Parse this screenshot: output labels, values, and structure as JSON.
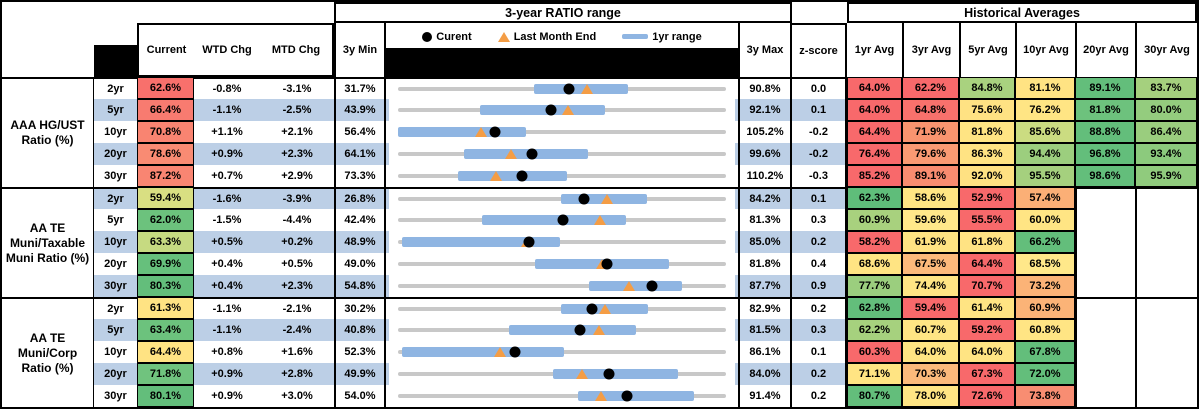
{
  "titles": {
    "range_section": "3-year RATIO range",
    "historical_section": "Historical Averages"
  },
  "legend": {
    "current_label": "Curent",
    "last_month_label": "Last Month End",
    "range_label": "1yr range"
  },
  "headers": {
    "current": "Current",
    "wtd": "WTD Chg",
    "mtd": "MTD Chg",
    "min": "3y Min",
    "max": "3y Max",
    "zscore": "z-score",
    "avgs": [
      "1yr Avg",
      "3yr Avg",
      "5yr Avg",
      "10yr Avg",
      "20yr Avg",
      "30yr Avg"
    ]
  },
  "colors": {
    "stripe_blue": "#BCCFE6",
    "bar_blue": "#8FB5E2",
    "track_grey": "#C8C8C8",
    "marker_orange": "#F49D45",
    "scale_red": "#F8696B",
    "scale_yellow": "#FFE383",
    "scale_green": "#63BE7B"
  },
  "chart_data": {
    "type": "table",
    "note_markers": {
      "dot": "Current",
      "triangle": "Last Month End",
      "bar": "1yr range"
    },
    "groups": [
      {
        "label": "AAA HG/UST Ratio (%)",
        "rows": [
          {
            "tenor": "2yr",
            "current": "62.6%",
            "cur_bg": "#F8706C",
            "wtd": "-0.8%",
            "mtd": "-3.1%",
            "min": "31.7%",
            "max": "90.8%",
            "z": "0.0",
            "bar": [
              56.2,
              73.2
            ],
            "lme": 65.7,
            "avgs": [
              [
                "64.0%",
                "#F8696B"
              ],
              [
                "62.2%",
                "#F8696B"
              ],
              [
                "84.8%",
                "#A9D27F"
              ],
              [
                "81.1%",
                "#FFE383"
              ],
              [
                "89.1%",
                "#63BE7B"
              ],
              [
                "83.7%",
                "#A5D07E"
              ]
            ]
          },
          {
            "tenor": "5yr",
            "current": "66.4%",
            "cur_bg": "#F87B70",
            "wtd": "-1.1%",
            "mtd": "-2.5%",
            "min": "43.9%",
            "max": "92.1%",
            "z": "0.1",
            "bar": [
              56.0,
              74.3
            ],
            "lme": 68.9,
            "avgs": [
              [
                "64.0%",
                "#F8696B"
              ],
              [
                "64.8%",
                "#F8716C"
              ],
              [
                "75.6%",
                "#FFE283"
              ],
              [
                "76.2%",
                "#FFE584"
              ],
              [
                "81.8%",
                "#6DC27D"
              ],
              [
                "80.0%",
                "#94CC7E"
              ]
            ]
          },
          {
            "tenor": "10yr",
            "current": "70.8%",
            "cur_bg": "#F98471",
            "wtd": "+1.1%",
            "mtd": "+2.1%",
            "min": "56.4%",
            "max": "105.2%",
            "z": "-0.2",
            "bar": [
              56.4,
              75.4
            ],
            "lme": 68.7,
            "avgs": [
              [
                "64.4%",
                "#F8696B"
              ],
              [
                "71.9%",
                "#F9946F"
              ],
              [
                "81.8%",
                "#FFE483"
              ],
              [
                "85.6%",
                "#CBDC81"
              ],
              [
                "88.8%",
                "#63BE7B"
              ],
              [
                "86.4%",
                "#9ACD7E"
              ]
            ]
          },
          {
            "tenor": "20yr",
            "current": "78.6%",
            "cur_bg": "#F98B73",
            "wtd": "+0.9%",
            "mtd": "+2.3%",
            "min": "64.1%",
            "max": "99.6%",
            "z": "-0.2",
            "bar": [
              71.2,
              84.7
            ],
            "lme": 76.3,
            "avgs": [
              [
                "76.4%",
                "#F8696B"
              ],
              [
                "79.6%",
                "#FA9A73"
              ],
              [
                "86.3%",
                "#FFE383"
              ],
              [
                "94.4%",
                "#9CCE7E"
              ],
              [
                "96.8%",
                "#63BE7B"
              ],
              [
                "93.4%",
                "#8CCA7D"
              ]
            ]
          },
          {
            "tenor": "30yr",
            "current": "87.2%",
            "cur_bg": "#F98572",
            "wtd": "+0.7%",
            "mtd": "+2.9%",
            "min": "73.3%",
            "max": "110.2%",
            "z": "-0.3",
            "bar": [
              80.0,
              92.3
            ],
            "lme": 84.3,
            "avgs": [
              [
                "85.2%",
                "#F8696B"
              ],
              [
                "89.1%",
                "#F98C70"
              ],
              [
                "92.0%",
                "#FFE182"
              ],
              [
                "95.5%",
                "#A5D07E"
              ],
              [
                "98.6%",
                "#63BE7B"
              ],
              [
                "95.9%",
                "#90CB7D"
              ]
            ]
          }
        ]
      },
      {
        "label": "AA TE Muni/Taxable Muni Ratio (%)",
        "rows": [
          {
            "tenor": "2yr",
            "current": "59.4%",
            "cur_bg": "#D9DF82",
            "wtd": "-1.6%",
            "mtd": "-3.9%",
            "min": "26.8%",
            "max": "84.2%",
            "z": "0.1",
            "bar": [
              55.3,
              70.3
            ],
            "lme": 63.3,
            "avgs": [
              [
                "62.3%",
                "#5FBD7A"
              ],
              [
                "58.6%",
                "#FFE583"
              ],
              [
                "52.9%",
                "#F8696B"
              ],
              [
                "57.4%",
                "#FBAF76"
              ],
              null,
              null
            ]
          },
          {
            "tenor": "5yr",
            "current": "62.0%",
            "cur_bg": "#6CC27D",
            "wtd": "-1.5%",
            "mtd": "-4.4%",
            "min": "42.4%",
            "max": "81.3%",
            "z": "0.3",
            "bar": [
              52.4,
              69.4
            ],
            "lme": 66.4,
            "avgs": [
              [
                "60.9%",
                "#A8D17E"
              ],
              [
                "59.6%",
                "#FFE88A"
              ],
              [
                "55.5%",
                "#F8696B"
              ],
              [
                "60.0%",
                "#FFE584"
              ],
              null,
              null
            ]
          },
          {
            "tenor": "10yr",
            "current": "63.3%",
            "cur_bg": "#C6DA81",
            "wtd": "+0.5%",
            "mtd": "+0.2%",
            "min": "48.9%",
            "max": "85.0%",
            "z": "0.2",
            "bar": [
              49.3,
              66.7
            ],
            "lme": 63.1,
            "avgs": [
              [
                "58.2%",
                "#F8696B"
              ],
              [
                "61.9%",
                "#FFE383"
              ],
              [
                "61.8%",
                "#FFE383"
              ],
              [
                "66.2%",
                "#63BE7B"
              ],
              null,
              null
            ]
          },
          {
            "tenor": "20yr",
            "current": "69.9%",
            "cur_bg": "#66C07C",
            "wtd": "+0.4%",
            "mtd": "+0.5%",
            "min": "49.0%",
            "max": "81.8%",
            "z": "0.4",
            "bar": [
              62.7,
              76.1
            ],
            "lme": 69.4,
            "avgs": [
              [
                "68.6%",
                "#FFE483"
              ],
              [
                "67.5%",
                "#FCBA7B"
              ],
              [
                "64.4%",
                "#F8696B"
              ],
              [
                "68.5%",
                "#FFE88A"
              ],
              null,
              null
            ]
          },
          {
            "tenor": "30yr",
            "current": "80.3%",
            "cur_bg": "#63BE7B",
            "wtd": "+0.4%",
            "mtd": "+2.3%",
            "min": "54.8%",
            "max": "87.7%",
            "z": "0.9",
            "bar": [
              74.0,
              83.3
            ],
            "lme": 78.0,
            "avgs": [
              [
                "77.7%",
                "#9BCE7E"
              ],
              [
                "74.4%",
                "#FFE584"
              ],
              [
                "70.7%",
                "#F8696B"
              ],
              [
                "73.2%",
                "#FBB377"
              ],
              null,
              null
            ]
          }
        ]
      },
      {
        "label": "AA TE Muni/Corp Ratio (%)",
        "rows": [
          {
            "tenor": "2yr",
            "current": "61.3%",
            "cur_bg": "#FFE383",
            "wtd": "-1.1%",
            "mtd": "-2.1%",
            "min": "30.2%",
            "max": "82.9%",
            "z": "0.2",
            "bar": [
              56.4,
              70.4
            ],
            "lme": 63.4,
            "avgs": [
              [
                "62.8%",
                "#63BE7B"
              ],
              [
                "59.4%",
                "#F8696B"
              ],
              [
                "61.4%",
                "#FFE483"
              ],
              [
                "60.9%",
                "#FBB377"
              ],
              null,
              null
            ]
          },
          {
            "tenor": "5yr",
            "current": "63.4%",
            "cur_bg": "#6CC27D",
            "wtd": "-1.1%",
            "mtd": "-2.4%",
            "min": "40.8%",
            "max": "81.5%",
            "z": "0.3",
            "bar": [
              54.6,
              70.3
            ],
            "lme": 65.8,
            "avgs": [
              [
                "62.2%",
                "#A6D17E"
              ],
              [
                "60.7%",
                "#FFE584"
              ],
              [
                "59.2%",
                "#F8696B"
              ],
              [
                "60.8%",
                "#FFE584"
              ],
              null,
              null
            ]
          },
          {
            "tenor": "10yr",
            "current": "64.4%",
            "cur_bg": "#FFE383",
            "wtd": "+0.8%",
            "mtd": "+1.6%",
            "min": "52.3%",
            "max": "86.1%",
            "z": "0.1",
            "bar": [
              52.7,
              69.4
            ],
            "lme": 62.8,
            "avgs": [
              [
                "60.3%",
                "#F8696B"
              ],
              [
                "64.0%",
                "#FFE483"
              ],
              [
                "64.0%",
                "#FFE483"
              ],
              [
                "67.8%",
                "#63BE7B"
              ],
              null,
              null
            ]
          },
          {
            "tenor": "20yr",
            "current": "71.8%",
            "cur_bg": "#70C37E",
            "wtd": "+0.9%",
            "mtd": "+2.8%",
            "min": "49.9%",
            "max": "84.0%",
            "z": "0.2",
            "bar": [
              66.0,
              79.0
            ],
            "lme": 69.0,
            "avgs": [
              [
                "71.1%",
                "#FFE483"
              ],
              [
                "70.3%",
                "#FBBA7B"
              ],
              [
                "67.3%",
                "#F8696B"
              ],
              [
                "72.0%",
                "#63BE7B"
              ],
              null,
              null
            ]
          },
          {
            "tenor": "30yr",
            "current": "80.1%",
            "cur_bg": "#63BE7B",
            "wtd": "+0.9%",
            "mtd": "+3.0%",
            "min": "54.0%",
            "max": "91.4%",
            "z": "0.2",
            "bar": [
              74.5,
              87.8
            ],
            "lme": 77.1,
            "avgs": [
              [
                "80.7%",
                "#63BE7B"
              ],
              [
                "78.0%",
                "#FFE584"
              ],
              [
                "72.6%",
                "#F8696B"
              ],
              [
                "73.8%",
                "#F88D72"
              ],
              null,
              null
            ]
          }
        ]
      }
    ]
  }
}
